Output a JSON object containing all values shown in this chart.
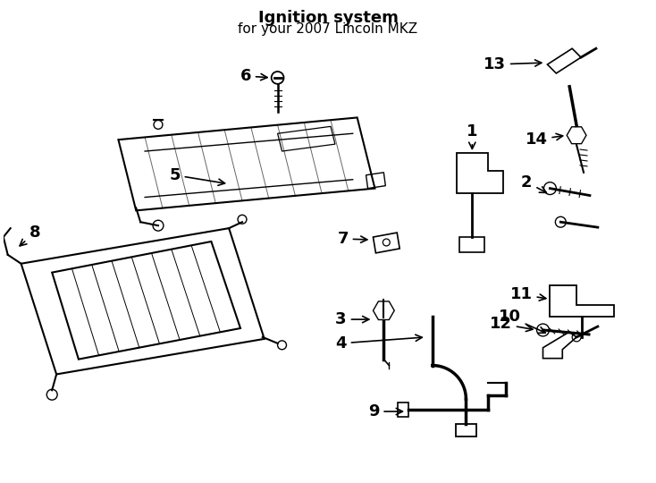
{
  "title": "Ignition system",
  "subtitle": "for your 2007 Lincoln MKZ",
  "background_color": "#ffffff",
  "line_color": "#000000",
  "text_color": "#000000",
  "label_fontsize": 13,
  "title_fontsize": 12
}
